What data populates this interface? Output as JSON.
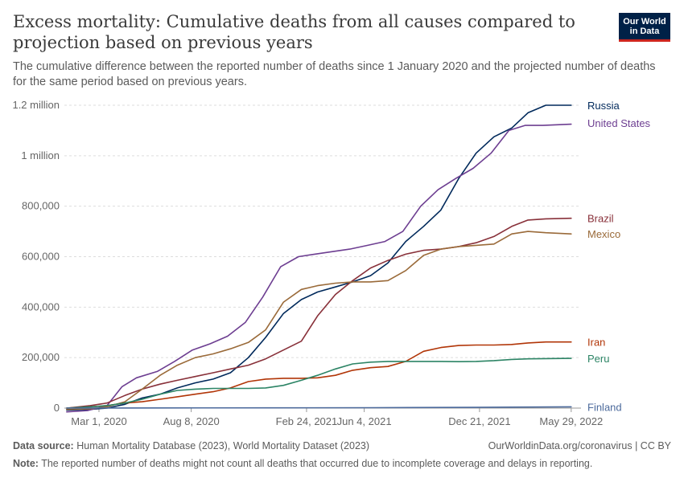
{
  "header": {
    "title": "Excess mortality: Cumulative deaths from all causes compared to projection based on previous years",
    "subtitle": "The cumulative difference between the reported number of deaths since 1 January 2020 and the projected number of deaths for the same period based on previous years.",
    "logo_line1": "Our World",
    "logo_line2": "in Data"
  },
  "footer": {
    "source_label": "Data source:",
    "source_text": "Human Mortality Database (2023), World Mortality Dataset (2023)",
    "credit": "OurWorldinData.org/coronavirus | CC BY",
    "note_label": "Note:",
    "note_text": "The reported number of deaths might not count all deaths that occurred due to incomplete coverage and delays in reporting."
  },
  "chart_data": {
    "type": "line",
    "title": "Excess mortality: Cumulative deaths from all causes compared to projection based on previous years",
    "xlabel": "",
    "ylabel": "",
    "xlim": [
      "2020-01-01",
      "2022-06-15"
    ],
    "ylim": [
      0,
      1200000
    ],
    "x_ticks": [
      {
        "date": "2020-03-01",
        "label": "Mar 1, 2020"
      },
      {
        "date": "2020-08-08",
        "label": "Aug 8, 2020"
      },
      {
        "date": "2021-02-24",
        "label": "Feb 24, 2021"
      },
      {
        "date": "2021-06-04",
        "label": "Jun 4, 2021"
      },
      {
        "date": "2021-12-21",
        "label": "Dec 21, 2021"
      },
      {
        "date": "2022-05-29",
        "label": "May 29, 2022"
      }
    ],
    "y_ticks": [
      {
        "value": 0,
        "label": "0"
      },
      {
        "value": 200000,
        "label": "200,000"
      },
      {
        "value": 400000,
        "label": "400,000"
      },
      {
        "value": 600000,
        "label": "600,000"
      },
      {
        "value": 800000,
        "label": "800,000"
      },
      {
        "value": 1000000,
        "label": "1 million"
      },
      {
        "value": 1200000,
        "label": "1.2 million"
      }
    ],
    "grid": "horizontal-dashed",
    "legend": "right-end-labels",
    "series": [
      {
        "name": "Russia",
        "color": "#00295b",
        "points": [
          [
            "2020-01-05",
            -8000
          ],
          [
            "2020-02-15",
            -5000
          ],
          [
            "2020-03-15",
            0
          ],
          [
            "2020-04-15",
            15000
          ],
          [
            "2020-05-15",
            40000
          ],
          [
            "2020-06-15",
            55000
          ],
          [
            "2020-07-15",
            80000
          ],
          [
            "2020-08-15",
            100000
          ],
          [
            "2020-09-15",
            115000
          ],
          [
            "2020-10-15",
            140000
          ],
          [
            "2020-11-15",
            200000
          ],
          [
            "2020-12-15",
            280000
          ],
          [
            "2021-01-15",
            375000
          ],
          [
            "2021-02-15",
            430000
          ],
          [
            "2021-03-15",
            460000
          ],
          [
            "2021-04-15",
            480000
          ],
          [
            "2021-05-15",
            500000
          ],
          [
            "2021-06-15",
            525000
          ],
          [
            "2021-07-15",
            575000
          ],
          [
            "2021-08-15",
            660000
          ],
          [
            "2021-09-15",
            720000
          ],
          [
            "2021-10-15",
            785000
          ],
          [
            "2021-11-15",
            910000
          ],
          [
            "2021-12-15",
            1010000
          ],
          [
            "2022-01-15",
            1075000
          ],
          [
            "2022-02-15",
            1110000
          ],
          [
            "2022-03-15",
            1170000
          ],
          [
            "2022-04-15",
            1200000
          ],
          [
            "2022-05-29",
            1200000
          ]
        ]
      },
      {
        "name": "United States",
        "color": "#6d3e91",
        "points": [
          [
            "2020-01-05",
            -15000
          ],
          [
            "2020-02-10",
            -10000
          ],
          [
            "2020-03-15",
            10000
          ],
          [
            "2020-04-10",
            85000
          ],
          [
            "2020-05-05",
            120000
          ],
          [
            "2020-06-10",
            145000
          ],
          [
            "2020-07-10",
            185000
          ],
          [
            "2020-08-10",
            230000
          ],
          [
            "2020-09-10",
            255000
          ],
          [
            "2020-10-10",
            285000
          ],
          [
            "2020-11-10",
            340000
          ],
          [
            "2020-12-10",
            440000
          ],
          [
            "2021-01-10",
            560000
          ],
          [
            "2021-02-10",
            600000
          ],
          [
            "2021-03-10",
            610000
          ],
          [
            "2021-04-10",
            620000
          ],
          [
            "2021-05-10",
            630000
          ],
          [
            "2021-06-10",
            645000
          ],
          [
            "2021-07-10",
            660000
          ],
          [
            "2021-08-10",
            700000
          ],
          [
            "2021-09-10",
            800000
          ],
          [
            "2021-10-10",
            865000
          ],
          [
            "2021-11-10",
            910000
          ],
          [
            "2021-12-10",
            950000
          ],
          [
            "2022-01-10",
            1010000
          ],
          [
            "2022-02-10",
            1100000
          ],
          [
            "2022-03-10",
            1120000
          ],
          [
            "2022-04-10",
            1120000
          ],
          [
            "2022-05-29",
            1125000
          ]
        ]
      },
      {
        "name": "Brazil",
        "color": "#883039",
        "points": [
          [
            "2020-01-05",
            0
          ],
          [
            "2020-02-15",
            10000
          ],
          [
            "2020-03-15",
            20000
          ],
          [
            "2020-04-15",
            50000
          ],
          [
            "2020-05-15",
            75000
          ],
          [
            "2020-06-15",
            95000
          ],
          [
            "2020-07-15",
            110000
          ],
          [
            "2020-08-15",
            125000
          ],
          [
            "2020-09-15",
            140000
          ],
          [
            "2020-10-15",
            155000
          ],
          [
            "2020-11-15",
            170000
          ],
          [
            "2020-12-15",
            195000
          ],
          [
            "2021-01-15",
            230000
          ],
          [
            "2021-02-15",
            265000
          ],
          [
            "2021-03-15",
            365000
          ],
          [
            "2021-04-15",
            450000
          ],
          [
            "2021-05-15",
            505000
          ],
          [
            "2021-06-15",
            555000
          ],
          [
            "2021-07-15",
            585000
          ],
          [
            "2021-08-15",
            610000
          ],
          [
            "2021-09-15",
            625000
          ],
          [
            "2021-10-15",
            630000
          ],
          [
            "2021-11-15",
            640000
          ],
          [
            "2021-12-15",
            655000
          ],
          [
            "2022-01-15",
            680000
          ],
          [
            "2022-02-15",
            720000
          ],
          [
            "2022-03-15",
            745000
          ],
          [
            "2022-04-15",
            750000
          ],
          [
            "2022-05-29",
            752000
          ]
        ]
      },
      {
        "name": "Mexico",
        "color": "#9a6a39",
        "points": [
          [
            "2020-01-05",
            -5000
          ],
          [
            "2020-02-15",
            -3000
          ],
          [
            "2020-03-15",
            5000
          ],
          [
            "2020-04-15",
            25000
          ],
          [
            "2020-05-15",
            75000
          ],
          [
            "2020-06-15",
            130000
          ],
          [
            "2020-07-15",
            170000
          ],
          [
            "2020-08-15",
            200000
          ],
          [
            "2020-09-15",
            215000
          ],
          [
            "2020-10-15",
            235000
          ],
          [
            "2020-11-15",
            260000
          ],
          [
            "2020-12-15",
            310000
          ],
          [
            "2021-01-15",
            420000
          ],
          [
            "2021-02-15",
            470000
          ],
          [
            "2021-03-15",
            485000
          ],
          [
            "2021-04-15",
            495000
          ],
          [
            "2021-05-15",
            500000
          ],
          [
            "2021-06-15",
            500000
          ],
          [
            "2021-07-15",
            505000
          ],
          [
            "2021-08-15",
            545000
          ],
          [
            "2021-09-15",
            605000
          ],
          [
            "2021-10-15",
            630000
          ],
          [
            "2021-11-15",
            640000
          ],
          [
            "2021-12-15",
            645000
          ],
          [
            "2022-01-15",
            650000
          ],
          [
            "2022-02-15",
            690000
          ],
          [
            "2022-03-15",
            700000
          ],
          [
            "2022-04-15",
            695000
          ],
          [
            "2022-05-29",
            690000
          ]
        ]
      },
      {
        "name": "Iran",
        "color": "#b13507",
        "points": [
          [
            "2020-01-05",
            0
          ],
          [
            "2020-02-15",
            5000
          ],
          [
            "2020-03-15",
            10000
          ],
          [
            "2020-04-15",
            20000
          ],
          [
            "2020-05-15",
            25000
          ],
          [
            "2020-06-15",
            35000
          ],
          [
            "2020-07-15",
            45000
          ],
          [
            "2020-08-15",
            55000
          ],
          [
            "2020-09-15",
            65000
          ],
          [
            "2020-10-15",
            80000
          ],
          [
            "2020-11-15",
            105000
          ],
          [
            "2020-12-15",
            115000
          ],
          [
            "2021-01-15",
            118000
          ],
          [
            "2021-02-15",
            118000
          ],
          [
            "2021-03-15",
            120000
          ],
          [
            "2021-04-15",
            130000
          ],
          [
            "2021-05-15",
            150000
          ],
          [
            "2021-06-15",
            160000
          ],
          [
            "2021-07-15",
            165000
          ],
          [
            "2021-08-15",
            185000
          ],
          [
            "2021-09-15",
            225000
          ],
          [
            "2021-10-15",
            240000
          ],
          [
            "2021-11-15",
            248000
          ],
          [
            "2021-12-15",
            250000
          ],
          [
            "2022-01-15",
            250000
          ],
          [
            "2022-02-15",
            252000
          ],
          [
            "2022-03-15",
            258000
          ],
          [
            "2022-04-15",
            262000
          ],
          [
            "2022-05-29",
            262000
          ]
        ]
      },
      {
        "name": "Peru",
        "color": "#2c8465",
        "points": [
          [
            "2020-01-05",
            0
          ],
          [
            "2020-02-15",
            5000
          ],
          [
            "2020-03-15",
            10000
          ],
          [
            "2020-04-15",
            20000
          ],
          [
            "2020-05-15",
            35000
          ],
          [
            "2020-06-15",
            55000
          ],
          [
            "2020-07-15",
            70000
          ],
          [
            "2020-08-15",
            75000
          ],
          [
            "2020-09-15",
            78000
          ],
          [
            "2020-10-15",
            78000
          ],
          [
            "2020-11-15",
            78000
          ],
          [
            "2020-12-15",
            80000
          ],
          [
            "2021-01-15",
            90000
          ],
          [
            "2021-02-15",
            110000
          ],
          [
            "2021-03-15",
            130000
          ],
          [
            "2021-04-15",
            155000
          ],
          [
            "2021-05-15",
            175000
          ],
          [
            "2021-06-15",
            182000
          ],
          [
            "2021-07-15",
            185000
          ],
          [
            "2021-08-15",
            185000
          ],
          [
            "2021-09-15",
            185000
          ],
          [
            "2021-10-15",
            185000
          ],
          [
            "2021-11-15",
            184000
          ],
          [
            "2021-12-15",
            185000
          ],
          [
            "2022-01-15",
            188000
          ],
          [
            "2022-02-15",
            193000
          ],
          [
            "2022-03-15",
            195000
          ],
          [
            "2022-04-15",
            196000
          ],
          [
            "2022-05-29",
            197000
          ]
        ]
      },
      {
        "name": "Finland",
        "color": "#4c6a9c",
        "points": [
          [
            "2020-01-05",
            0
          ],
          [
            "2020-06-15",
            500
          ],
          [
            "2020-12-15",
            1000
          ],
          [
            "2021-06-15",
            1500
          ],
          [
            "2021-12-15",
            3000
          ],
          [
            "2022-05-29",
            5000
          ]
        ]
      }
    ],
    "end_labels": [
      {
        "name": "Russia",
        "value": 1200000
      },
      {
        "name": "United States",
        "value": 1130000
      },
      {
        "name": "Brazil",
        "value": 752000
      },
      {
        "name": "Mexico",
        "value": 690000
      },
      {
        "name": "Iran",
        "value": 262000
      },
      {
        "name": "Peru",
        "value": 197000
      },
      {
        "name": "Finland",
        "value": 5000
      }
    ]
  }
}
